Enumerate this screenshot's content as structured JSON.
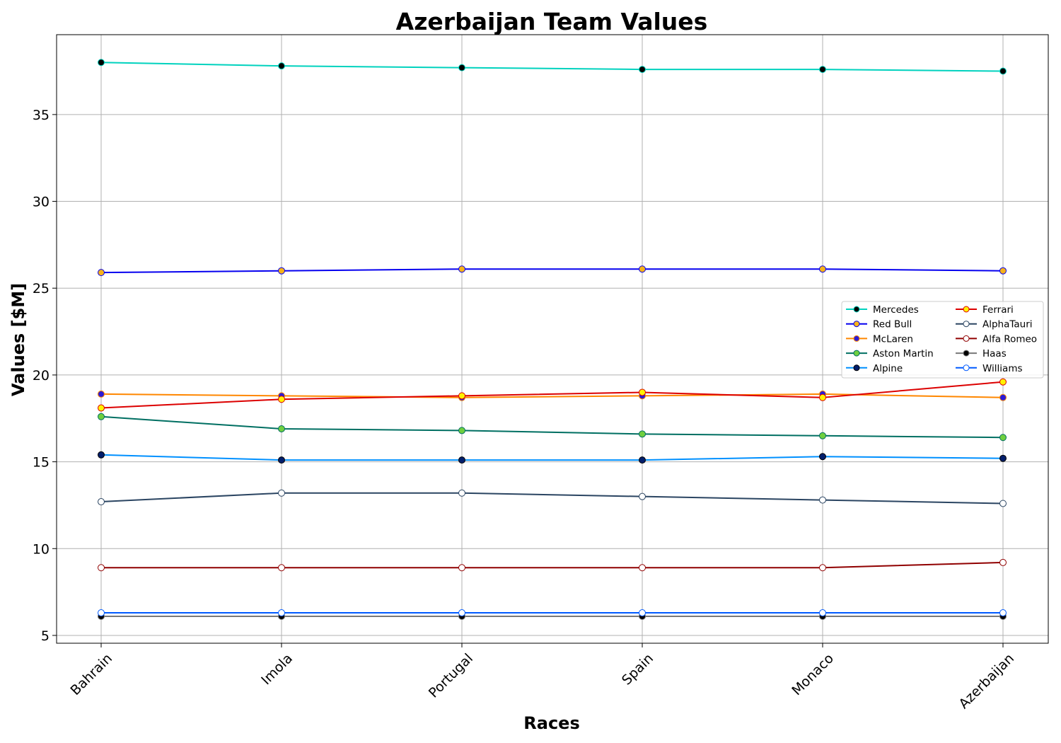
{
  "chart_data": {
    "type": "line",
    "title": "Azerbaijan Team Values",
    "xlabel": "Races",
    "ylabel": "Values [$M]",
    "categories": [
      "Bahrain",
      "Imola",
      "Portugal",
      "Spain",
      "Monaco",
      "Azerbaijan"
    ],
    "ylim": [
      4.55,
      39.6
    ],
    "yticks": [
      5,
      10,
      15,
      20,
      25,
      30,
      35
    ],
    "grid": true,
    "legend_position": "center-right",
    "series": [
      {
        "name": "Mercedes",
        "values": [
          38.0,
          37.8,
          37.7,
          37.6,
          37.6,
          37.5
        ],
        "color": "#00d2be",
        "marker_face": "#000000",
        "marker_edge": "#00d2be"
      },
      {
        "name": "Red Bull",
        "values": [
          25.9,
          26.0,
          26.1,
          26.1,
          26.1,
          26.0
        ],
        "color": "#0600ef",
        "marker_face": "#f6b21a",
        "marker_edge": "#0600ef"
      },
      {
        "name": "McLaren",
        "values": [
          18.9,
          18.8,
          18.7,
          18.8,
          18.9,
          18.7
        ],
        "color": "#ff8700",
        "marker_face": "#2b1bd6",
        "marker_edge": "#ff8700"
      },
      {
        "name": "Aston Martin",
        "values": [
          17.6,
          16.9,
          16.8,
          16.6,
          16.5,
          16.4
        ],
        "color": "#006f62",
        "marker_face": "#6fcf3f",
        "marker_edge": "#006f62"
      },
      {
        "name": "Alpine",
        "values": [
          15.4,
          15.1,
          15.1,
          15.1,
          15.3,
          15.2
        ],
        "color": "#0090ff",
        "marker_face": "#031e6b",
        "marker_edge": "#000000"
      },
      {
        "name": "Ferrari",
        "values": [
          18.1,
          18.6,
          18.8,
          19.0,
          18.7,
          19.6
        ],
        "color": "#dc0000",
        "marker_face": "#fff200",
        "marker_edge": "#dc0000"
      },
      {
        "name": "AlphaTauri",
        "values": [
          12.7,
          13.2,
          13.2,
          13.0,
          12.8,
          12.6
        ],
        "color": "#2b4562",
        "marker_face": "#ffffff",
        "marker_edge": "#2b4562"
      },
      {
        "name": "Alfa Romeo",
        "values": [
          8.9,
          8.9,
          8.9,
          8.9,
          8.9,
          9.2
        ],
        "color": "#900000",
        "marker_face": "#ffffff",
        "marker_edge": "#900000"
      },
      {
        "name": "Haas",
        "values": [
          6.1,
          6.1,
          6.1,
          6.1,
          6.1,
          6.1
        ],
        "color": "#787878",
        "marker_face": "#000000",
        "marker_edge": "#787878"
      },
      {
        "name": "Williams",
        "values": [
          6.3,
          6.3,
          6.3,
          6.3,
          6.3,
          6.3
        ],
        "color": "#005aff",
        "marker_face": "#ffffff",
        "marker_edge": "#005aff"
      }
    ]
  }
}
